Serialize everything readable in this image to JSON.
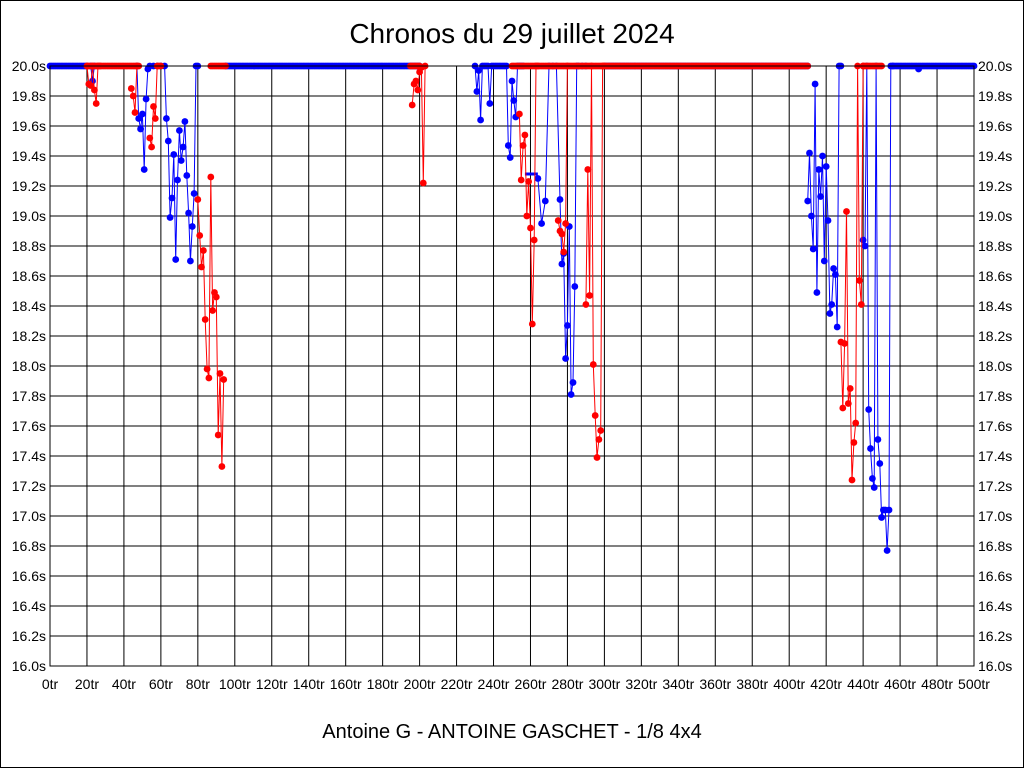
{
  "chart_data": {
    "type": "line",
    "title": "Chronos du 29 juillet 2024",
    "subtitle": "Antoine G - ANTOINE GASCHET - 1/8 4x4",
    "xlabel": "",
    "ylabel": "",
    "xlim": [
      0,
      500
    ],
    "ylim": [
      16.0,
      20.0
    ],
    "grid": true,
    "x_ticks": [
      "0tr",
      "20tr",
      "40tr",
      "60tr",
      "80tr",
      "100tr",
      "120tr",
      "140tr",
      "160tr",
      "180tr",
      "200tr",
      "220tr",
      "240tr",
      "260tr",
      "280tr",
      "300tr",
      "320tr",
      "340tr",
      "360tr",
      "380tr",
      "400tr",
      "420tr",
      "440tr",
      "460tr",
      "480tr",
      "500tr"
    ],
    "y_ticks": [
      "16.0s",
      "16.2s",
      "16.4s",
      "16.6s",
      "16.8s",
      "17.0s",
      "17.2s",
      "17.4s",
      "17.6s",
      "17.8s",
      "18.0s",
      "18.2s",
      "18.4s",
      "18.6s",
      "18.8s",
      "19.0s",
      "19.2s",
      "19.4s",
      "19.6s",
      "19.8s",
      "20.0s"
    ],
    "colors": {
      "blue": "#0000ff",
      "red": "#ff0000"
    },
    "series": [
      {
        "color": "#0000ff",
        "segments": [
          {
            "x": [
              0,
              20
            ],
            "flat": true
          },
          {
            "x": [
              22,
              23,
              24,
              47,
              48,
              49,
              50,
              51,
              52,
              53,
              54,
              56,
              58,
              60,
              62,
              63,
              64,
              65,
              66,
              67,
              68,
              69,
              70,
              71,
              72,
              73,
              74,
              75,
              76,
              77,
              78,
              79,
              80
            ],
            "y": [
              20.0,
              19.9,
              20.0,
              20.0,
              19.65,
              19.58,
              19.68,
              19.31,
              19.78,
              19.98,
              20.0,
              20.0,
              20.0,
              20.0,
              20.0,
              19.65,
              19.5,
              18.99,
              19.12,
              19.41,
              18.71,
              19.24,
              19.57,
              19.37,
              19.46,
              19.63,
              19.27,
              19.02,
              18.7,
              18.93,
              19.15,
              20.0,
              20.0
            ]
          },
          {
            "x": [
              95,
              200
            ],
            "flat": true
          },
          {
            "x": [
              230,
              231,
              232,
              233,
              234,
              235,
              236,
              237,
              238,
              239,
              240,
              241,
              242,
              243,
              244,
              245,
              246,
              247,
              248,
              249,
              250,
              251,
              252,
              253,
              254,
              255,
              256
            ],
            "y": [
              20.0,
              19.83,
              19.97,
              19.64,
              20.0,
              20.0,
              20.0,
              20.0,
              19.75,
              20.0,
              20.0,
              20.0,
              20.0,
              20.0,
              20.0,
              20.0,
              20.0,
              20.0,
              19.47,
              19.39,
              19.9,
              19.77,
              19.66,
              20.0,
              20.0,
              20.0,
              20.0
            ]
          },
          {
            "x": [
              264,
              266,
              268,
              270,
              272,
              274,
              276,
              277,
              278,
              279,
              280,
              281,
              282,
              283,
              284,
              285,
              286,
              288,
              290
            ],
            "y": [
              19.25,
              18.95,
              19.1,
              20.0,
              20.0,
              20.0,
              19.11,
              18.68,
              18.75,
              18.05,
              18.27,
              18.93,
              17.81,
              17.89,
              18.53,
              20.0,
              20.0,
              20.0,
              20.0
            ]
          },
          {
            "x": [
              300,
              410
            ],
            "flat": true
          },
          {
            "x": [
              410,
              411,
              412,
              413,
              414,
              415,
              416,
              417,
              418,
              419,
              420,
              421,
              422,
              423,
              424,
              425,
              426,
              427,
              428
            ],
            "y": [
              19.1,
              19.42,
              19.0,
              18.78,
              19.88,
              18.49,
              19.31,
              19.13,
              19.4,
              18.7,
              19.33,
              18.97,
              18.35,
              18.41,
              18.65,
              18.61,
              18.26,
              20.0,
              20.0
            ]
          },
          {
            "x": [
              440,
              441,
              442,
              443,
              444,
              445,
              446,
              447,
              448,
              449,
              450,
              451,
              452,
              453,
              454,
              455,
              456
            ],
            "y": [
              18.84,
              18.8,
              20.0,
              17.71,
              17.45,
              17.25,
              17.19,
              20.0,
              17.51,
              17.35,
              16.99,
              17.04,
              17.04,
              16.77,
              17.04,
              20.0,
              20.0
            ]
          },
          {
            "x": [
              456,
              500
            ],
            "flat": true
          },
          {
            "x": [
              470
            ],
            "y": [
              19.98
            ]
          }
        ],
        "bars": [
          {
            "x1": 257,
            "x2": 264,
            "y": 19.28
          }
        ]
      },
      {
        "color": "#ff0000",
        "segments": [
          {
            "x": [
              20,
              47
            ],
            "flat": true
          },
          {
            "x": [
              20,
              21,
              22,
              23,
              24,
              25,
              26,
              27
            ],
            "y": [
              20.0,
              19.88,
              19.87,
              20.0,
              19.84,
              19.75,
              20.0,
              20.0
            ]
          },
          {
            "x": [
              44,
              45,
              46,
              47,
              48
            ],
            "y": [
              19.85,
              19.8,
              19.69,
              20.0,
              20.0
            ]
          },
          {
            "x": [
              54,
              55,
              56,
              57,
              58,
              59,
              60
            ],
            "y": [
              19.52,
              19.46,
              19.73,
              19.65,
              20.0,
              20.0,
              20.0
            ]
          },
          {
            "x": [
              80,
              81,
              82,
              83,
              84,
              85,
              86,
              87,
              88,
              89,
              90,
              91,
              92,
              93,
              94
            ],
            "y": [
              19.11,
              18.87,
              18.66,
              18.77,
              18.31,
              17.98,
              17.92,
              19.26,
              18.37,
              18.49,
              18.46,
              17.54,
              17.95,
              17.33,
              17.91
            ]
          },
          {
            "x": [
              87,
              95
            ],
            "flat": true
          },
          {
            "x": [
              195,
              200
            ],
            "flat": true
          },
          {
            "x": [
              196,
              197,
              198,
              199,
              200,
              201,
              202,
              203
            ],
            "y": [
              19.74,
              19.88,
              19.9,
              19.84,
              19.96,
              19.99,
              19.22,
              20.0
            ]
          },
          {
            "x": [
              250,
              300
            ],
            "flat": true
          },
          {
            "x": [
              254,
              255,
              256,
              257,
              258,
              259,
              260,
              261,
              262,
              263,
              264
            ],
            "y": [
              19.68,
              19.24,
              19.47,
              19.54,
              19.0,
              19.23,
              18.92,
              18.28,
              18.84,
              20.0,
              20.0
            ]
          },
          {
            "x": [
              275,
              276,
              277,
              278,
              279,
              280
            ],
            "y": [
              18.97,
              18.9,
              18.88,
              18.76,
              18.95,
              20.0
            ]
          },
          {
            "x": [
              290,
              291,
              292,
              293,
              294,
              295,
              296,
              297,
              298,
              299
            ],
            "y": [
              18.41,
              19.31,
              18.47,
              20.0,
              18.01,
              17.67,
              17.39,
              17.51,
              17.57,
              20.0
            ]
          },
          {
            "x": [
              300,
              410
            ],
            "flat": true
          },
          {
            "x": [
              428,
              429,
              430,
              431,
              432,
              433,
              434,
              435,
              436,
              437,
              438,
              439,
              440
            ],
            "y": [
              18.16,
              17.72,
              18.15,
              19.03,
              17.75,
              17.85,
              17.24,
              17.49,
              17.62,
              20.0,
              18.57,
              18.41,
              20.0
            ]
          },
          {
            "x": [
              440,
              450
            ],
            "flat": true
          }
        ],
        "bars": []
      }
    ]
  }
}
